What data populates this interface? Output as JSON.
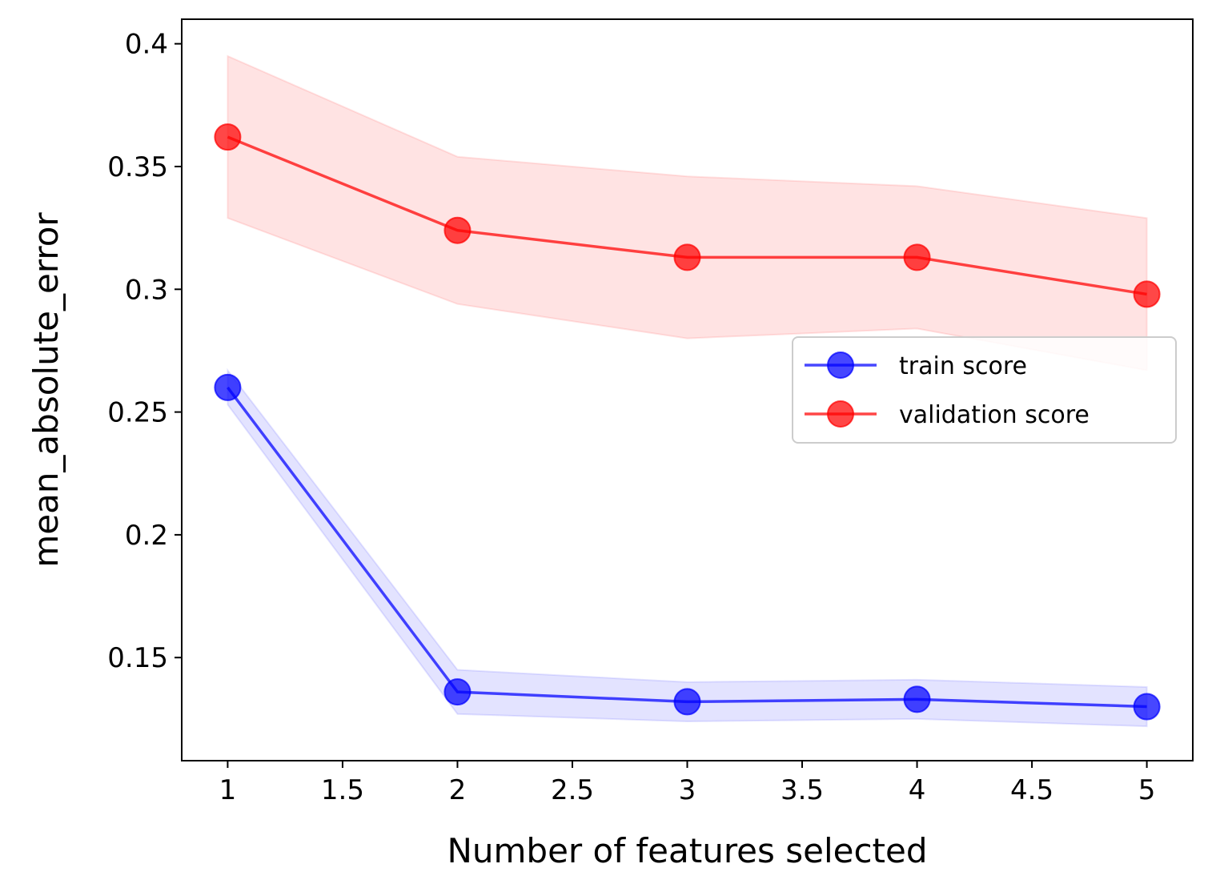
{
  "chart_data": {
    "type": "line",
    "xlabel": "Number of features selected",
    "ylabel": "mean_absolute_error",
    "x": [
      1,
      2,
      3,
      4,
      5
    ],
    "xlim": [
      0.8,
      5.2
    ],
    "ylim": [
      0.108,
      0.41
    ],
    "xticks": [
      1,
      1.5,
      2,
      2.5,
      3,
      3.5,
      4,
      4.5,
      5
    ],
    "xtick_labels": [
      "1",
      "1.5",
      "2",
      "2.5",
      "3",
      "3.5",
      "4",
      "4.5",
      "5"
    ],
    "yticks": [
      0.15,
      0.2,
      0.25,
      0.3,
      0.35,
      0.4
    ],
    "ytick_labels": [
      "0.15",
      "0.2",
      "0.25",
      "0.3",
      "0.35",
      "0.4"
    ],
    "grid": false,
    "legend_position": "center-right",
    "series": [
      {
        "name": "train score",
        "color": "#0000ff",
        "values": [
          0.26,
          0.136,
          0.132,
          0.133,
          0.13
        ],
        "band_lower": [
          0.253,
          0.127,
          0.124,
          0.125,
          0.122
        ],
        "band_upper": [
          0.267,
          0.145,
          0.14,
          0.141,
          0.138
        ]
      },
      {
        "name": "validation score",
        "color": "#ff0000",
        "values": [
          0.362,
          0.324,
          0.313,
          0.313,
          0.298
        ],
        "band_lower": [
          0.329,
          0.294,
          0.28,
          0.284,
          0.267
        ],
        "band_upper": [
          0.395,
          0.354,
          0.346,
          0.342,
          0.329
        ]
      }
    ]
  }
}
